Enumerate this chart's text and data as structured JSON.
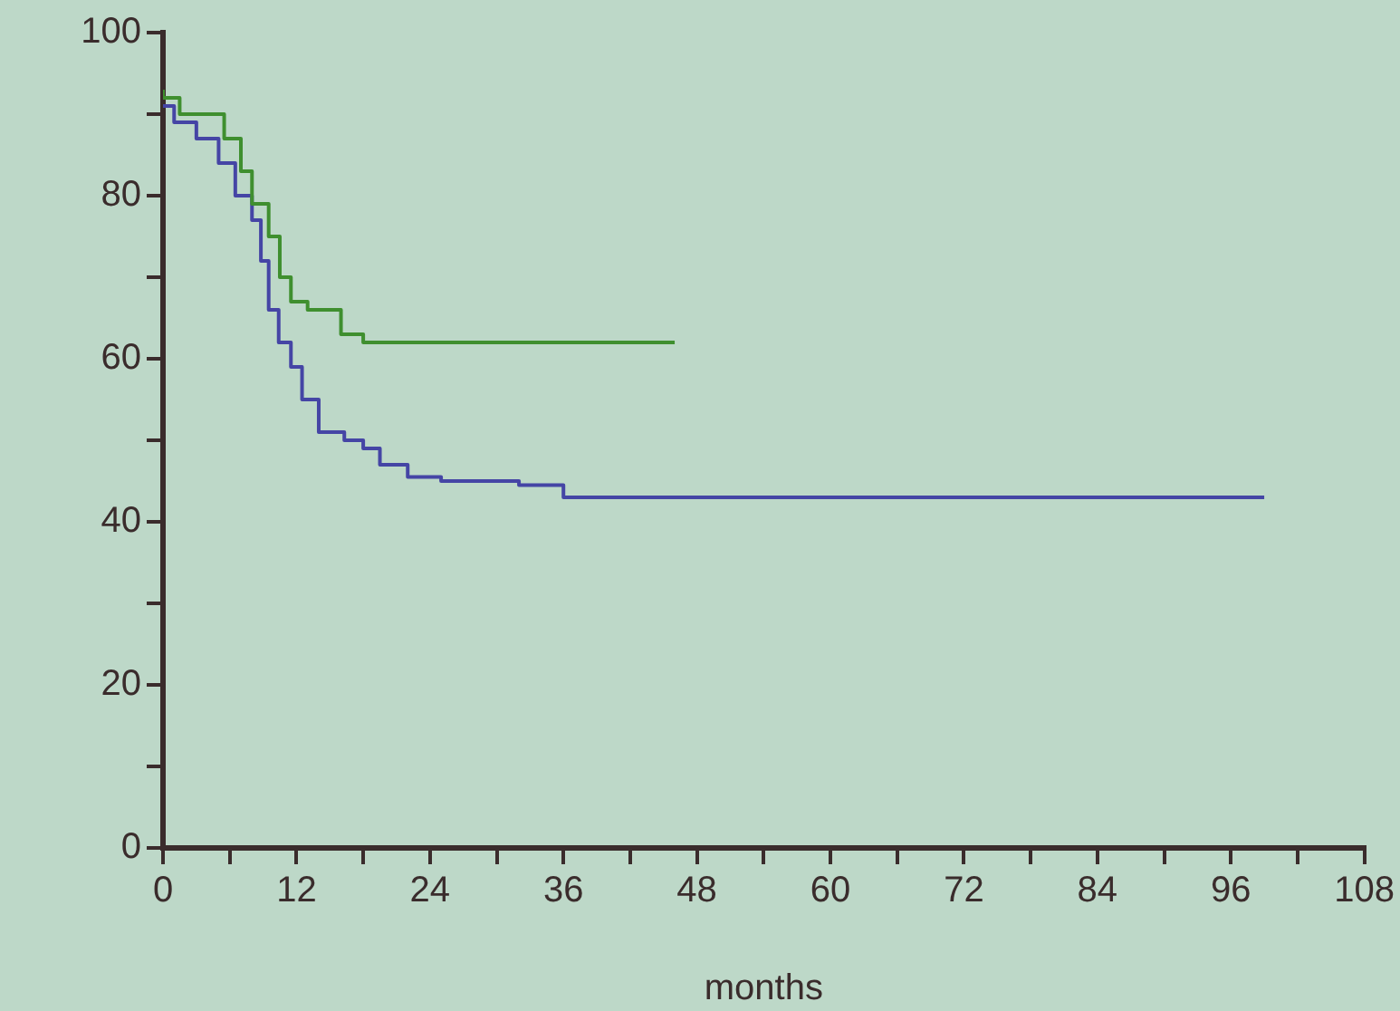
{
  "chart_data": {
    "type": "step",
    "xlabel": "months",
    "xlim": [
      0,
      108
    ],
    "xticks": [
      0,
      {
        "value": 6,
        "label": null
      },
      12,
      {
        "value": 18,
        "label": null
      },
      24,
      {
        "value": 30,
        "label": null
      },
      36,
      {
        "value": 42,
        "label": null
      },
      48,
      {
        "value": 54,
        "label": null
      },
      60,
      {
        "value": 66,
        "label": null
      },
      72,
      {
        "value": 78,
        "label": null
      },
      84,
      {
        "value": 90,
        "label": null
      },
      96,
      {
        "value": 102,
        "label": null
      },
      108
    ],
    "ylim": [
      0,
      100
    ],
    "yticks": [
      0,
      {
        "value": 10,
        "label": null
      },
      20,
      {
        "value": 30,
        "label": null
      },
      40,
      {
        "value": 50,
        "label": null
      },
      60,
      {
        "value": 70,
        "label": null
      },
      80,
      {
        "value": 90,
        "label": null
      },
      100
    ],
    "grid": false,
    "legend": false,
    "marker": "none",
    "line_style": "solid",
    "series": [
      {
        "color": "#3f8f2f",
        "x": [
          0,
          1.5,
          5.5,
          7,
          8,
          9.5,
          10.5,
          11.5,
          13,
          16,
          18,
          19,
          46
        ],
        "values": [
          93,
          92,
          90,
          87,
          83,
          79,
          75,
          70,
          67,
          66,
          63,
          62,
          62
        ]
      },
      {
        "color": "#4545a5",
        "x": [
          0,
          1,
          3,
          5,
          6.5,
          8,
          8.8,
          9.5,
          10.4,
          11.5,
          12.5,
          14,
          16.3,
          18,
          19.5,
          22,
          25,
          32,
          36,
          41,
          99
        ],
        "values": [
          91,
          91,
          89,
          87,
          84,
          80,
          77,
          72,
          66,
          62,
          59,
          55,
          51,
          50,
          49,
          47,
          45.5,
          45,
          44.5,
          43,
          43
        ]
      }
    ]
  }
}
